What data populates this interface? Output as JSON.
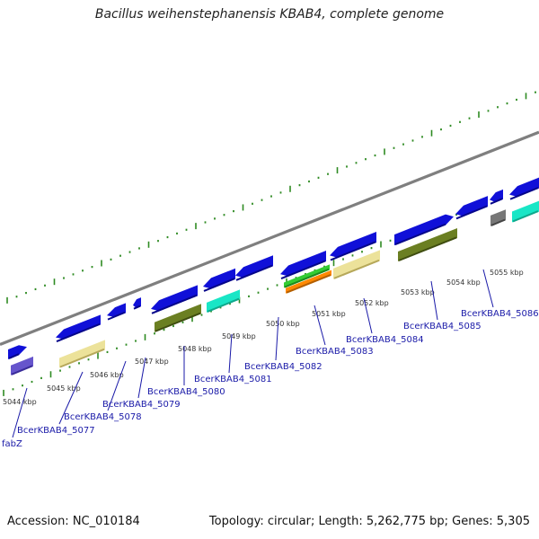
{
  "header": {
    "title": "Bacillus weihenstephanensis KBAB4, complete genome"
  },
  "footer": {
    "accession": "Accession: NC_010184",
    "summary": "Topology: circular; Length: 5,262,775 bp; Genes: 5,305"
  },
  "colors": {
    "backbone": "#7f7f7f",
    "tick_green": "#2e8b22",
    "label_blue": "#1a1aa8",
    "gene_blue": "#1010d8",
    "gene_olive": "#6b7f22",
    "gene_yellow": "#ece29a",
    "gene_cyan": "#19e6c6",
    "gene_purple": "#6655cc",
    "gene_green": "#33cc33",
    "gene_orange": "#ff8800",
    "gene_grey": "#777777"
  },
  "kbp_labels": [
    "5044 kbp",
    "5045 kbp",
    "5046 kbp",
    "5047 kbp",
    "5048 kbp",
    "5049 kbp",
    "5050 kbp",
    "5051 kbp",
    "5052 kbp",
    "5053 kbp",
    "5054 kbp",
    "5055 kbp"
  ],
  "gene_labels": [
    "fabZ",
    "BcerKBAB4_5077",
    "BcerKBAB4_5078",
    "BcerKBAB4_5079",
    "BcerKBAB4_5080",
    "BcerKBAB4_5081",
    "BcerKBAB4_5082",
    "BcerKBAB4_5083",
    "BcerKBAB4_5084",
    "BcerKBAB4_5085",
    "BcerKBAB4_5086"
  ]
}
